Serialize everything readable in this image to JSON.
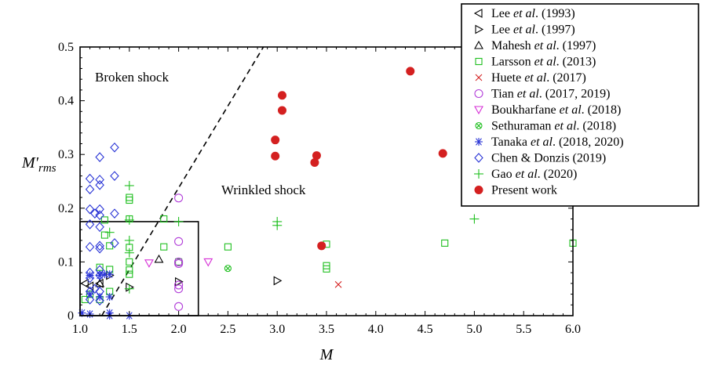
{
  "chart_data": {
    "type": "scatter",
    "title": "",
    "xlabel": "M",
    "ylabel_main": "M′",
    "ylabel_sub": "rms",
    "xlim": [
      1.0,
      6.0
    ],
    "ylim": [
      0,
      0.5
    ],
    "xticks": [
      "1.0",
      "1.5",
      "2.0",
      "2.5",
      "3.0",
      "3.5",
      "4.0",
      "4.5",
      "5.0",
      "5.5",
      "6.0"
    ],
    "yticks": [
      "0",
      "0.1",
      "0.2",
      "0.3",
      "0.4",
      "0.5"
    ],
    "grid": false,
    "legend_position": "top-right",
    "annotations": {
      "broken": "Broken shock",
      "wrinkled": "Wrinkled shock"
    },
    "dashed_line": [
      [
        1.22,
        0.0
      ],
      [
        2.86,
        0.5
      ]
    ],
    "inset_box": [
      [
        1.0,
        0.0
      ],
      [
        2.2,
        0.175
      ]
    ],
    "colors": {
      "black": "#000000",
      "green": "#1fbf1f",
      "red": "#d42020",
      "purple": "#b23fd9",
      "magenta": "#d62fd6",
      "blue": "#2a35d6"
    },
    "series": [
      {
        "name_parts": [
          "Lee ",
          "et al",
          ". (1993)"
        ],
        "marker": "triangle-left",
        "color": "#000000",
        "points": [
          [
            1.05,
            0.06
          ],
          [
            1.1,
            0.055
          ],
          [
            1.2,
            0.06
          ]
        ]
      },
      {
        "name_parts": [
          "Lee ",
          "et al",
          ". (1997)"
        ],
        "marker": "triangle-right",
        "color": "#000000",
        "points": [
          [
            1.5,
            0.053
          ],
          [
            2.0,
            0.063
          ],
          [
            3.0,
            0.065
          ],
          [
            1.3,
            0.075
          ]
        ]
      },
      {
        "name_parts": [
          "Mahesh ",
          "et al",
          ". (1997)"
        ],
        "marker": "triangle-up",
        "color": "#000000",
        "points": [
          [
            1.2,
            0.06
          ],
          [
            1.8,
            0.105
          ]
        ]
      },
      {
        "name_parts": [
          "Larsson ",
          "et al",
          ". (2013)"
        ],
        "marker": "square",
        "color": "#1fbf1f",
        "points": [
          [
            1.05,
            0.03
          ],
          [
            1.1,
            0.04
          ],
          [
            1.2,
            0.09
          ],
          [
            1.2,
            0.03
          ],
          [
            1.25,
            0.15
          ],
          [
            1.25,
            0.178
          ],
          [
            1.3,
            0.13
          ],
          [
            1.3,
            0.086
          ],
          [
            1.3,
            0.045
          ],
          [
            1.5,
            0.127
          ],
          [
            1.5,
            0.085
          ],
          [
            1.5,
            0.077
          ],
          [
            1.5,
            0.22
          ],
          [
            1.5,
            0.215
          ],
          [
            1.5,
            0.18
          ],
          [
            1.5,
            0.1
          ],
          [
            1.85,
            0.18
          ],
          [
            1.85,
            0.128
          ],
          [
            2.0,
            0.1
          ],
          [
            2.5,
            0.128
          ],
          [
            3.5,
            0.133
          ],
          [
            3.5,
            0.093
          ],
          [
            3.5,
            0.087
          ],
          [
            4.7,
            0.135
          ],
          [
            6.0,
            0.135
          ]
        ]
      },
      {
        "name_parts": [
          "Huete ",
          "et al",
          ". (2017)"
        ],
        "marker": "x",
        "color": "#d42020",
        "points": [
          [
            3.62,
            0.058
          ]
        ]
      },
      {
        "name_parts": [
          "Tian ",
          "et al",
          ". (2017, 2019)"
        ],
        "marker": "circle",
        "color": "#b23fd9",
        "points": [
          [
            2.0,
            0.219
          ],
          [
            2.0,
            0.138
          ],
          [
            2.0,
            0.1
          ],
          [
            2.0,
            0.097
          ],
          [
            2.0,
            0.057
          ],
          [
            2.0,
            0.05
          ],
          [
            2.0,
            0.017
          ]
        ]
      },
      {
        "name_parts": [
          "Boukharfane ",
          "et al",
          ". (2018)"
        ],
        "marker": "triangle-down",
        "color": "#d62fd6",
        "points": [
          [
            1.7,
            0.098
          ],
          [
            2.3,
            0.1
          ]
        ]
      },
      {
        "name_parts": [
          "Sethuraman ",
          "et al",
          ". (2018)"
        ],
        "marker": "circle-x",
        "color": "#1fbf1f",
        "points": [
          [
            2.5,
            0.088
          ]
        ]
      },
      {
        "name_parts": [
          "Tanaka ",
          "et al",
          ". (2018, 2020)"
        ],
        "marker": "asterisk",
        "color": "#2a35d6",
        "points": [
          [
            1.02,
            0.005
          ],
          [
            1.1,
            0.003
          ],
          [
            1.1,
            0.075
          ],
          [
            1.2,
            0.075
          ],
          [
            1.2,
            0.035
          ],
          [
            1.25,
            0.077
          ],
          [
            1.3,
            0.077
          ],
          [
            1.3,
            0.035
          ],
          [
            1.3,
            0.005
          ],
          [
            1.3,
            0.0
          ],
          [
            1.5,
            0.0
          ],
          [
            1.1,
            0.04
          ]
        ]
      },
      {
        "name_parts": [
          "Chen & Donzis (2019)"
        ],
        "marker": "diamond",
        "color": "#2a35d6",
        "points": [
          [
            1.1,
            0.255
          ],
          [
            1.1,
            0.235
          ],
          [
            1.1,
            0.198
          ],
          [
            1.1,
            0.17
          ],
          [
            1.1,
            0.128
          ],
          [
            1.1,
            0.08
          ],
          [
            1.1,
            0.07
          ],
          [
            1.1,
            0.045
          ],
          [
            1.1,
            0.03
          ],
          [
            1.15,
            0.05
          ],
          [
            1.2,
            0.295
          ],
          [
            1.2,
            0.253
          ],
          [
            1.2,
            0.243
          ],
          [
            1.2,
            0.198
          ],
          [
            1.2,
            0.187
          ],
          [
            1.2,
            0.165
          ],
          [
            1.2,
            0.13
          ],
          [
            1.2,
            0.125
          ],
          [
            1.2,
            0.085
          ],
          [
            1.2,
            0.075
          ],
          [
            1.2,
            0.045
          ],
          [
            1.2,
            0.028
          ],
          [
            1.15,
            0.19
          ],
          [
            1.35,
            0.313
          ],
          [
            1.35,
            0.26
          ],
          [
            1.35,
            0.19
          ],
          [
            1.35,
            0.135
          ]
        ]
      },
      {
        "name_parts": [
          "Gao ",
          "et al",
          ". (2020)"
        ],
        "marker": "plus",
        "color": "#1fbf1f",
        "points": [
          [
            1.5,
            0.242
          ],
          [
            1.5,
            0.178
          ],
          [
            1.5,
            0.14
          ],
          [
            1.5,
            0.117
          ],
          [
            1.5,
            0.05
          ],
          [
            1.3,
            0.155
          ],
          [
            2.0,
            0.175
          ],
          [
            3.0,
            0.175
          ],
          [
            3.0,
            0.168
          ],
          [
            5.0,
            0.18
          ]
        ]
      },
      {
        "name_parts": [
          "Present work"
        ],
        "marker": "filled-circle",
        "color": "#d42020",
        "points": [
          [
            2.98,
            0.297
          ],
          [
            2.98,
            0.327
          ],
          [
            3.05,
            0.41
          ],
          [
            3.05,
            0.382
          ],
          [
            3.38,
            0.285
          ],
          [
            3.4,
            0.298
          ],
          [
            3.45,
            0.13
          ],
          [
            4.35,
            0.455
          ],
          [
            4.68,
            0.302
          ]
        ]
      }
    ]
  }
}
